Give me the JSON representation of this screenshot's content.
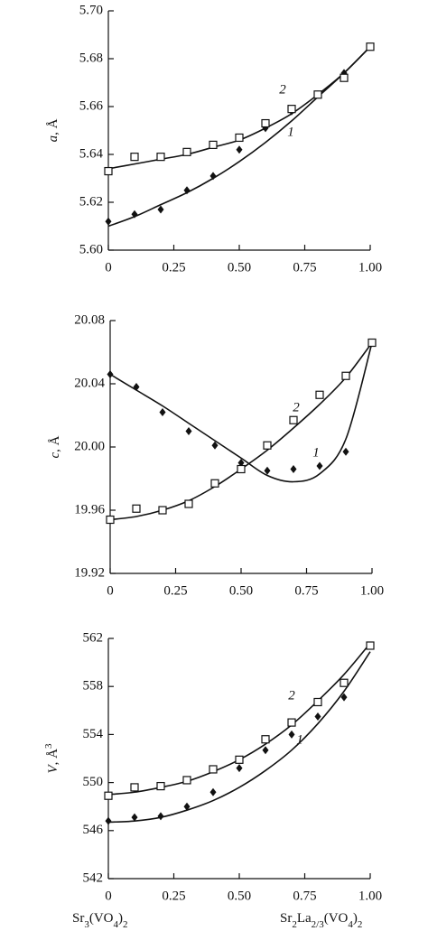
{
  "chart_data": [
    {
      "type": "scatter",
      "ylabel": [
        "a",
        ", Å"
      ],
      "x": [
        0,
        0.1,
        0.2,
        0.3,
        0.4,
        0.5,
        0.6,
        0.7,
        0.8,
        0.9,
        1.0
      ],
      "xlim": [
        0,
        1
      ],
      "xticks": [
        0,
        0.25,
        {
          "value": 0.5,
          "label": "0.50"
        },
        0.75,
        {
          "value": 1,
          "label": "1.00"
        }
      ],
      "ylim": [
        5.6,
        5.7
      ],
      "yticks": [
        {
          "value": 5.6,
          "label": "5.60"
        },
        5.62,
        5.64,
        5.66,
        5.68,
        {
          "value": 5.7,
          "label": "5.70"
        }
      ],
      "series": [
        {
          "name": "1",
          "marker": "diamond",
          "color": "#111111",
          "values": [
            5.612,
            5.615,
            5.617,
            5.625,
            5.631,
            5.642,
            5.651,
            5.658,
            5.665,
            5.674,
            5.685
          ],
          "fit": [
            5.61,
            5.614,
            5.619,
            5.624,
            5.63,
            5.637,
            5.645,
            5.654,
            5.664,
            5.674,
            5.685
          ]
        },
        {
          "name": "2",
          "marker": "square",
          "color": "#111111",
          "values": [
            5.633,
            5.639,
            5.639,
            5.641,
            5.644,
            5.647,
            5.653,
            5.659,
            5.665,
            5.672,
            5.685
          ],
          "fit": [
            5.634,
            5.636,
            5.638,
            5.64,
            5.643,
            5.646,
            5.651,
            5.657,
            5.665,
            5.674,
            5.685
          ]
        }
      ]
    },
    {
      "type": "scatter",
      "ylabel": [
        "c",
        ", Å"
      ],
      "x": [
        0,
        0.1,
        0.2,
        0.3,
        0.4,
        0.5,
        0.6,
        0.7,
        0.8,
        0.9,
        1.0
      ],
      "xlim": [
        0,
        1
      ],
      "xticks": [
        0,
        0.25,
        {
          "value": 0.5,
          "label": "0.50"
        },
        0.75,
        {
          "value": 1,
          "label": "1.00"
        }
      ],
      "ylim": [
        19.92,
        20.08
      ],
      "yticks": [
        19.92,
        19.96,
        {
          "value": 20,
          "label": "20.00"
        },
        20.04,
        20.08
      ],
      "series": [
        {
          "name": "1",
          "marker": "diamond",
          "color": "#111111",
          "values": [
            20.046,
            20.038,
            20.022,
            20.01,
            20.001,
            19.99,
            19.985,
            19.986,
            19.988,
            19.997,
            20.066
          ],
          "fit": [
            20.046,
            20.036,
            20.026,
            20.015,
            20.004,
            19.993,
            19.982,
            19.978,
            19.983,
            20.005,
            20.066
          ]
        },
        {
          "name": "2",
          "marker": "square",
          "color": "#111111",
          "values": [
            19.954,
            19.961,
            19.96,
            19.964,
            19.977,
            19.986,
            20.001,
            20.017,
            20.033,
            20.045,
            20.066
          ],
          "fit": [
            19.954,
            19.956,
            19.96,
            19.966,
            19.975,
            19.986,
            19.998,
            20.012,
            20.027,
            20.044,
            20.066
          ]
        }
      ]
    },
    {
      "type": "scatter",
      "ylabel": [
        "V",
        ", Å",
        "3"
      ],
      "x": [
        0,
        0.1,
        0.2,
        0.3,
        0.4,
        0.5,
        0.6,
        0.7,
        0.8,
        0.9,
        1.0
      ],
      "xlim": [
        0,
        1
      ],
      "xticks": [
        0,
        0.25,
        {
          "value": 0.5,
          "label": "0.50"
        },
        0.75,
        {
          "value": 1,
          "label": "1.00"
        }
      ],
      "ylim": [
        542,
        562
      ],
      "yticks": [
        542,
        546,
        550,
        554,
        558,
        562
      ],
      "series": [
        {
          "name": "1",
          "marker": "diamond",
          "color": "#111111",
          "values": [
            546.8,
            547.1,
            547.2,
            548.0,
            549.2,
            551.2,
            552.7,
            554.0,
            555.5,
            557.1,
            561.4
          ],
          "fit": [
            546.7,
            546.8,
            547.1,
            547.7,
            548.5,
            549.6,
            551.0,
            552.7,
            554.9,
            557.6,
            560.9
          ]
        },
        {
          "name": "2",
          "marker": "square",
          "color": "#111111",
          "values": [
            548.9,
            549.6,
            549.7,
            550.2,
            551.1,
            551.9,
            553.6,
            555.0,
            556.7,
            558.3,
            561.4
          ],
          "fit": [
            549.0,
            549.2,
            549.6,
            550.1,
            550.9,
            551.9,
            553.2,
            554.8,
            556.8,
            559.0,
            561.6
          ]
        }
      ],
      "x_end_labels": [
        [
          "Sr",
          "3",
          "(VO",
          "4",
          ")",
          "2"
        ],
        [
          "Sr",
          "2",
          "La",
          "2/3",
          "(VO",
          "4",
          ")",
          "2"
        ]
      ]
    }
  ]
}
